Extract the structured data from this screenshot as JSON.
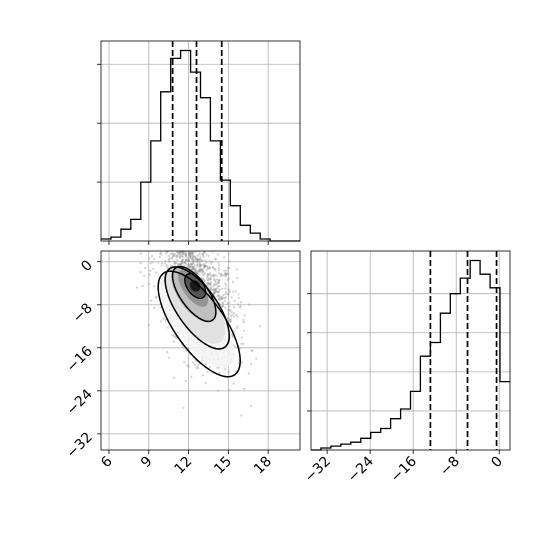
{
  "chart_data": [
    {
      "panel": "histogram-x",
      "type": "histogram",
      "xlim": [
        5.4,
        20.4
      ],
      "grid": true,
      "bin_width": 0.75,
      "bin_edges_start": 5.4,
      "counts": [
        1,
        2,
        6,
        11,
        30,
        51,
        76,
        93,
        97,
        86,
        73,
        51,
        31,
        18,
        8,
        4,
        1,
        0,
        0,
        0
      ],
      "quantile_lines": [
        10.8,
        12.6,
        14.5
      ]
    },
    {
      "panel": "scatter-density",
      "type": "scatter",
      "xlim": [
        5.4,
        20.4
      ],
      "ylim": [
        -35,
        2
      ],
      "x_ticks": [
        "6",
        "9",
        "12",
        "15",
        "18"
      ],
      "y_ticks": [
        "0",
        "−8",
        "−16",
        "−24",
        "−32"
      ],
      "grid": true,
      "peak": {
        "x": 12.5,
        "y": -4.5
      },
      "contour_levels": 4
    },
    {
      "panel": "histogram-y",
      "type": "histogram",
      "xlim": [
        -35,
        2
      ],
      "x_ticks": [
        "−32",
        "−24",
        "−16",
        "−8",
        "0"
      ],
      "grid": true,
      "bin_width": 1.85,
      "bin_edges_start": -35,
      "counts": [
        0,
        1,
        2,
        3,
        4,
        6,
        9,
        11,
        16,
        21,
        30,
        48,
        55,
        70,
        80,
        88,
        97,
        90,
        83,
        35
      ],
      "quantile_lines": [
        -12.8,
        -5.9,
        -0.5
      ]
    }
  ]
}
